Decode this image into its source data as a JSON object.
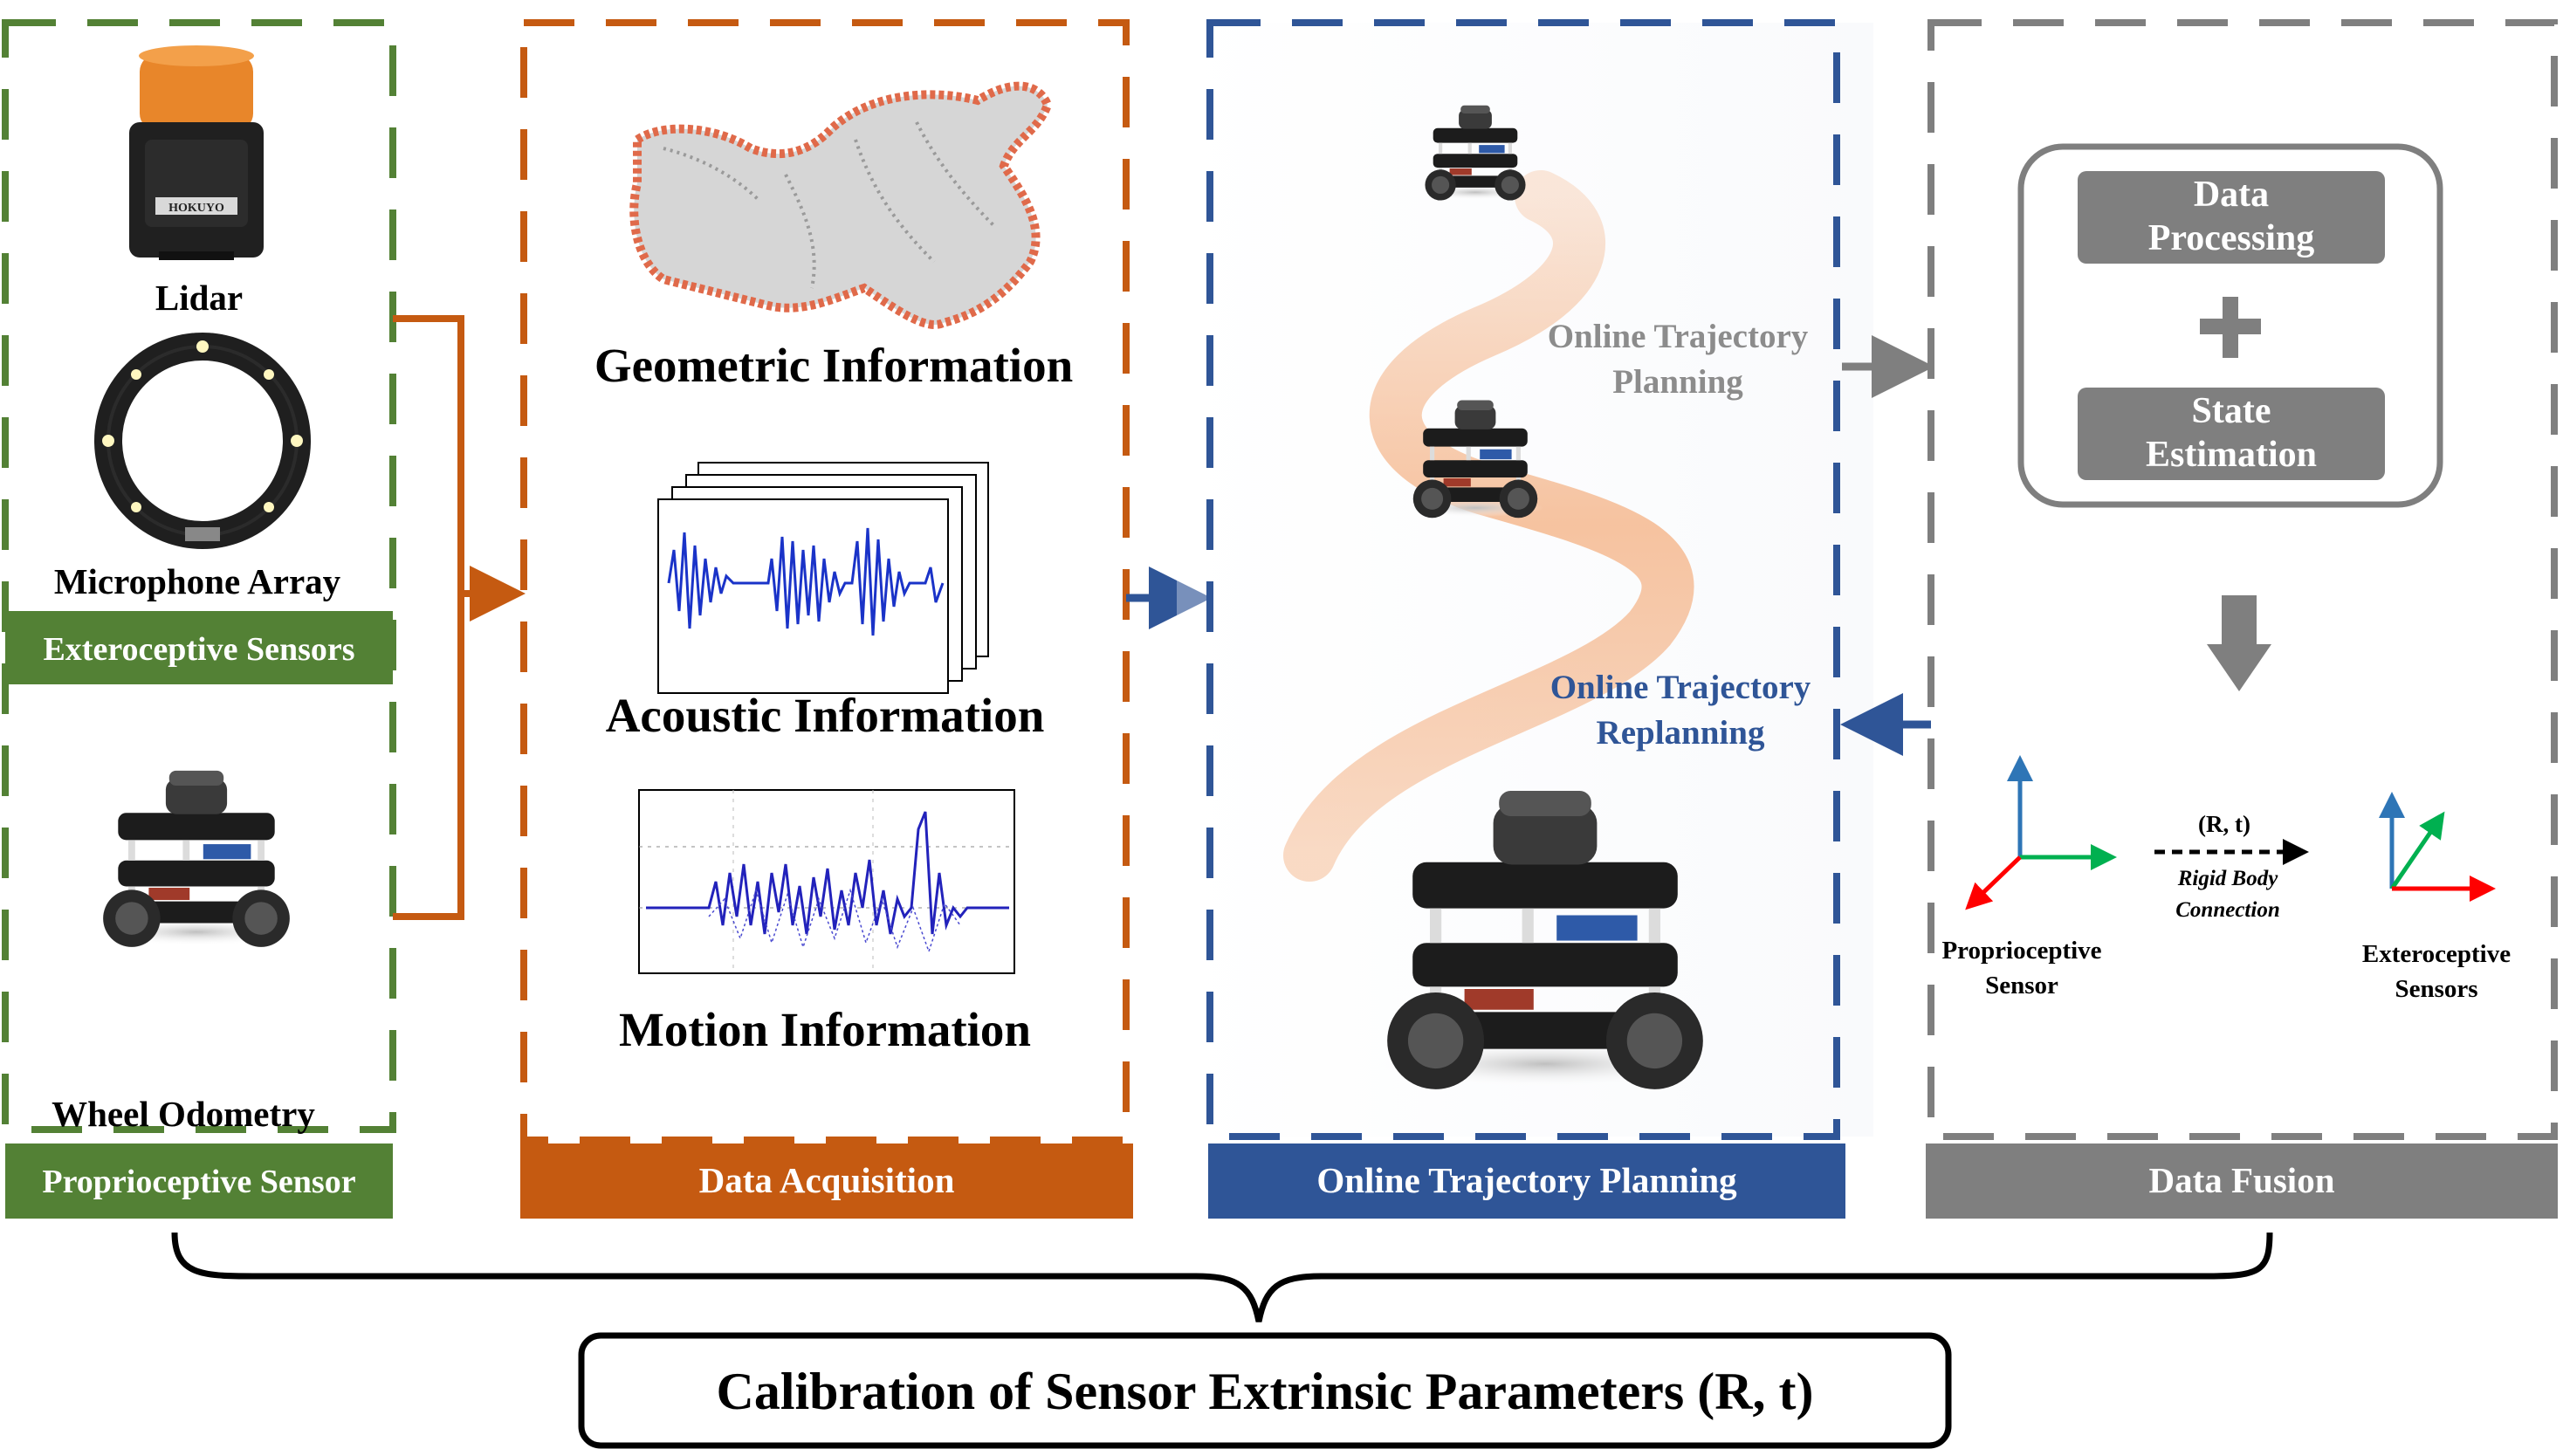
{
  "colors": {
    "green": "#538135",
    "orange": "#C55A11",
    "blue": "#2F5597",
    "gray": "#7F7F7F",
    "gray_text": "#8C8C8C",
    "dark": "#000000",
    "curve": "#F4B183",
    "axis_blue": "#2E75B6",
    "axis_green": "#00B050",
    "axis_red": "#FF0000"
  },
  "sensors": {
    "lidar_label": "Lidar",
    "lidar_brand": "HOKUYO",
    "mic_label": "Microphone Array",
    "extero_band": "Exteroceptive Sensors",
    "wheel_label": "Wheel Odometry",
    "proprio_band": "Proprioceptive Sensor"
  },
  "acquisition": {
    "geometric": "Geometric Information",
    "acoustic": "Acoustic  Information",
    "motion": "Motion Information",
    "band": "Data Acquisition"
  },
  "planning": {
    "online_line1": "Online Trajectory",
    "online_line2": "Planning",
    "replan_line1": "Online Trajectory",
    "replan_line2": "Replanning",
    "band": "Online Trajectory Planning"
  },
  "fusion": {
    "box1_line1": "Data",
    "box1_line2": "Processing",
    "plus": "+",
    "box2_line1": "State",
    "box2_line2": "Estimation",
    "rt": "(R, t)",
    "rigid_line1": "Rigid Body",
    "rigid_line2": "Connection",
    "proprio_line1": "Proprioceptive",
    "proprio_line2": "Sensor",
    "extero_line1": "Exteroceptive",
    "extero_line2": "Sensors",
    "band": "Data Fusion"
  },
  "calibration": {
    "label": "Calibration of Sensor Extrinsic  Parameters (R, t)"
  }
}
